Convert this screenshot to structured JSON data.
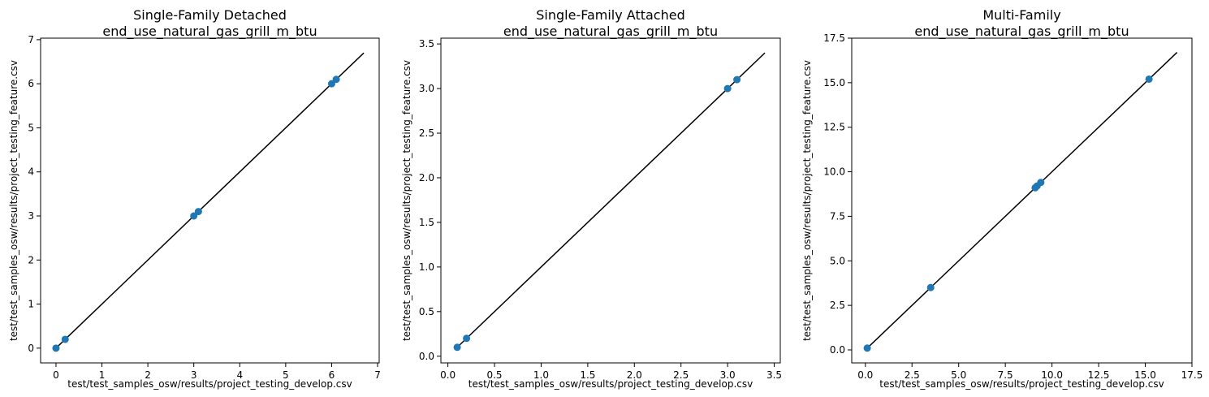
{
  "chart_data": [
    {
      "type": "scatter",
      "title": "Single-Family Detached",
      "subtitle": "end_use_natural_gas_grill_m_btu",
      "xlabel": "test/test_samples_osw/results/project_testing_develop.csv",
      "ylabel": "test/test_samples_osw/results/project_testing_feature.csv",
      "xlim": [
        -0.335,
        7.035
      ],
      "ylim": [
        -0.335,
        7.035
      ],
      "xticks": [
        0,
        1,
        2,
        3,
        4,
        5,
        6,
        7
      ],
      "yticks": [
        0,
        1,
        2,
        3,
        4,
        5,
        6,
        7
      ],
      "xtick_labels": [
        "0",
        "1",
        "2",
        "3",
        "4",
        "5",
        "6",
        "7"
      ],
      "ytick_labels": [
        "0",
        "1",
        "2",
        "3",
        "4",
        "5",
        "6",
        "7"
      ],
      "points": {
        "x": [
          0.0,
          0.2,
          3.0,
          3.1,
          6.0,
          6.1
        ],
        "y": [
          0.0,
          0.2,
          3.0,
          3.1,
          6.0,
          6.1
        ]
      },
      "reference_line": {
        "x": [
          0.0,
          6.7
        ],
        "y": [
          0.0,
          6.7
        ]
      },
      "grid": false,
      "point_color": "#1f77b4",
      "line_color": "#000000"
    },
    {
      "type": "scatter",
      "title": "Single-Family Attached",
      "subtitle": "end_use_natural_gas_grill_m_btu",
      "xlabel": "test/test_samples_osw/results/project_testing_develop.csv",
      "ylabel": "test/test_samples_osw/results/project_testing_feature.csv",
      "xlim": [
        -0.075,
        3.565
      ],
      "ylim": [
        -0.075,
        3.565
      ],
      "xticks": [
        0,
        0.5,
        1,
        1.5,
        2,
        2.5,
        3,
        3.5
      ],
      "yticks": [
        0,
        0.5,
        1,
        1.5,
        2,
        2.5,
        3,
        3.5
      ],
      "xtick_labels": [
        "0.0",
        "0.5",
        "1.0",
        "1.5",
        "2.0",
        "2.5",
        "3.0",
        "3.5"
      ],
      "ytick_labels": [
        "0.0",
        "0.5",
        "1.0",
        "1.5",
        "2.0",
        "2.5",
        "3.0",
        "3.5"
      ],
      "points": {
        "x": [
          0.1,
          0.2,
          3.0,
          3.1
        ],
        "y": [
          0.1,
          0.2,
          3.0,
          3.1
        ]
      },
      "reference_line": {
        "x": [
          0.1,
          3.4
        ],
        "y": [
          0.1,
          3.4
        ]
      },
      "grid": false,
      "point_color": "#1f77b4",
      "line_color": "#000000"
    },
    {
      "type": "scatter",
      "title": "Multi-Family",
      "subtitle": "end_use_natural_gas_grill_m_btu",
      "xlabel": "test/test_samples_osw/results/project_testing_develop.csv",
      "ylabel": "test/test_samples_osw/results/project_testing_feature.csv",
      "xlim": [
        -0.73,
        17.5
      ],
      "ylim": [
        -0.73,
        17.5
      ],
      "xticks": [
        0,
        2.5,
        5,
        7.5,
        10,
        12.5,
        15,
        17.5
      ],
      "yticks": [
        0,
        2.5,
        5,
        7.5,
        10,
        12.5,
        15,
        17.5
      ],
      "xtick_labels": [
        "0.0",
        "2.5",
        "5.0",
        "7.5",
        "10.0",
        "12.5",
        "15.0",
        "17.5"
      ],
      "ytick_labels": [
        "0.0",
        "2.5",
        "5.0",
        "7.5",
        "10.0",
        "12.5",
        "15.0",
        "17.5"
      ],
      "points": {
        "x": [
          0.1,
          3.5,
          9.1,
          9.2,
          9.4,
          15.2
        ],
        "y": [
          0.1,
          3.5,
          9.1,
          9.2,
          9.4,
          15.2
        ]
      },
      "reference_line": {
        "x": [
          0.1,
          16.7
        ],
        "y": [
          0.1,
          16.7
        ]
      },
      "grid": false,
      "point_color": "#1f77b4",
      "line_color": "#000000"
    }
  ]
}
